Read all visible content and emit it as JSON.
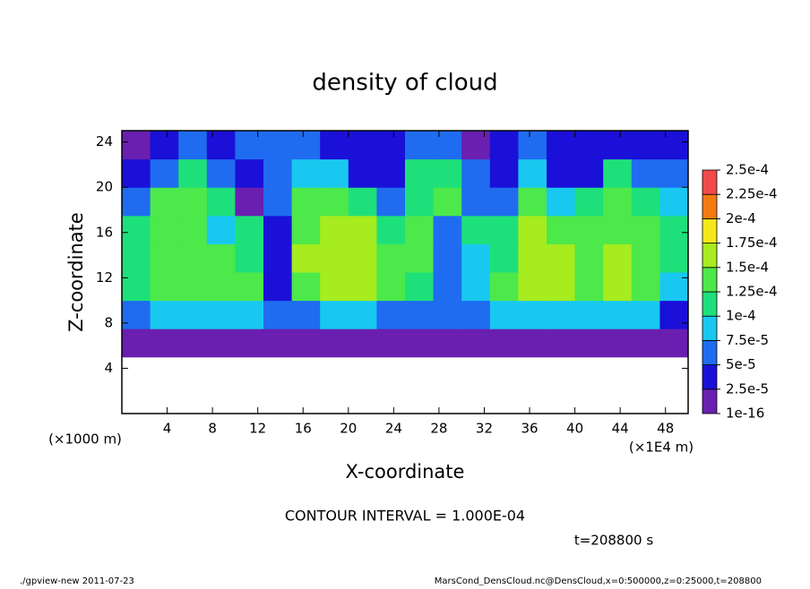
{
  "chart_data": {
    "type": "heatmap",
    "title": "density of cloud",
    "xlabel": "X-coordinate",
    "ylabel": "Z-coordinate",
    "xunit": "(×1E4 m)",
    "yunit": "(×1000 m)",
    "contour_note": "CONTOUR INTERVAL = 1.000E-04",
    "time_note": "t=208800 s",
    "footer_left": "./gpview-new  2011-07-23",
    "footer_right": "MarsCond_DensCloud.nc@DensCloud,x=0:500000,z=0:25000,t=208800",
    "xlim": [
      0,
      50
    ],
    "ylim": [
      0,
      25
    ],
    "xticks": [
      4,
      8,
      12,
      16,
      20,
      24,
      28,
      32,
      36,
      40,
      44,
      48
    ],
    "yticks": [
      4,
      8,
      12,
      16,
      20,
      24
    ],
    "x_bins": [
      0,
      2.5,
      5,
      7.5,
      10,
      12.5,
      15,
      17.5,
      20,
      22.5,
      25,
      27.5,
      30,
      32.5,
      35,
      37.5,
      40,
      42.5,
      45,
      47.5,
      50
    ],
    "z_bins": [
      0,
      2.5,
      5,
      7.5,
      10,
      12.5,
      15,
      17.5,
      20,
      22.5,
      25
    ],
    "levels": [
      {
        "value": 1e-16,
        "label": "1e-16"
      },
      {
        "value": 2.5e-05,
        "label": "2.5e-5"
      },
      {
        "value": 5e-05,
        "label": "5e-5"
      },
      {
        "value": 7.5e-05,
        "label": "7.5e-5"
      },
      {
        "value": 0.0001,
        "label": "1e-4"
      },
      {
        "value": 0.000125,
        "label": "1.25e-4"
      },
      {
        "value": 0.00015,
        "label": "1.5e-4"
      },
      {
        "value": 0.000175,
        "label": "1.75e-4"
      },
      {
        "value": 0.0002,
        "label": "2e-4"
      },
      {
        "value": 0.000225,
        "label": "2.25e-4"
      },
      {
        "value": 0.00025,
        "label": "2.5e-4"
      }
    ],
    "colors": [
      "#6a1fb0",
      "#1a10d8",
      "#1f6cf0",
      "#19c8f0",
      "#1ee07a",
      "#4de84a",
      "#a6ec1e",
      "#f5e81a",
      "#f57a12",
      "#f04a4a"
    ],
    "below_color": "#ffffff",
    "values": [
      [
        0,
        0,
        0,
        0,
        0,
        0,
        0,
        0,
        0,
        0,
        0,
        0,
        0,
        0,
        0,
        0,
        0,
        0,
        0,
        0
      ],
      [
        0,
        0,
        0,
        0,
        0,
        0,
        0,
        0,
        0,
        0,
        0,
        0,
        0,
        0,
        0,
        0,
        0,
        0,
        0,
        0
      ],
      [
        1e-05,
        1e-05,
        1e-05,
        1e-05,
        1e-05,
        1e-05,
        1e-05,
        1e-05,
        1e-05,
        1e-05,
        1e-05,
        1e-05,
        1e-05,
        1e-05,
        1e-05,
        1e-05,
        1e-05,
        1e-05,
        1e-05,
        1e-05
      ],
      [
        6e-05,
        8e-05,
        8e-05,
        9e-05,
        9e-05,
        5e-05,
        7e-05,
        9e-05,
        9e-05,
        6e-05,
        6e-05,
        5e-05,
        6e-05,
        9e-05,
        9e-05,
        8e-05,
        8e-05,
        9e-05,
        8e-05,
        4e-05
      ],
      [
        0.00011,
        0.00013,
        0.00014,
        0.00014,
        0.00013,
        3e-05,
        0.00014,
        0.00016,
        0.00016,
        0.00013,
        0.00012,
        6e-05,
        8e-05,
        0.00013,
        0.00016,
        0.00015,
        0.00014,
        0.00015,
        0.00014,
        9e-05
      ],
      [
        0.00012,
        0.00014,
        0.00014,
        0.00013,
        0.00012,
        4e-05,
        0.00015,
        0.00017,
        0.00016,
        0.00013,
        0.00013,
        5e-05,
        9e-05,
        0.00012,
        0.00016,
        0.00015,
        0.00014,
        0.00015,
        0.00014,
        0.00011
      ],
      [
        0.00011,
        0.00014,
        0.00013,
        9e-05,
        0.00011,
        3e-05,
        0.00014,
        0.00016,
        0.00015,
        0.00011,
        0.00013,
        6e-05,
        0.00011,
        0.00011,
        0.00015,
        0.00014,
        0.00013,
        0.00014,
        0.00014,
        0.00011
      ],
      [
        6e-05,
        0.00013,
        0.00013,
        0.00012,
        1e-05,
        5e-05,
        0.00013,
        0.00014,
        0.00012,
        5e-05,
        0.00012,
        0.00013,
        7e-05,
        5e-05,
        0.00014,
        9e-05,
        0.00012,
        0.00013,
        0.00012,
        9e-05
      ],
      [
        4e-05,
        7e-05,
        0.00011,
        5e-05,
        4e-05,
        6e-05,
        9e-05,
        8e-05,
        4e-05,
        4e-05,
        0.00011,
        0.00012,
        5e-05,
        4e-05,
        9e-05,
        4e-05,
        4e-05,
        0.0001,
        5e-05,
        6e-05
      ],
      [
        2e-05,
        4e-05,
        5e-05,
        3e-05,
        6e-05,
        7e-05,
        5e-05,
        4e-05,
        3e-05,
        3e-05,
        5e-05,
        6e-05,
        2e-05,
        3e-05,
        5e-05,
        3e-05,
        3e-05,
        4e-05,
        3e-05,
        3e-05
      ]
    ]
  }
}
